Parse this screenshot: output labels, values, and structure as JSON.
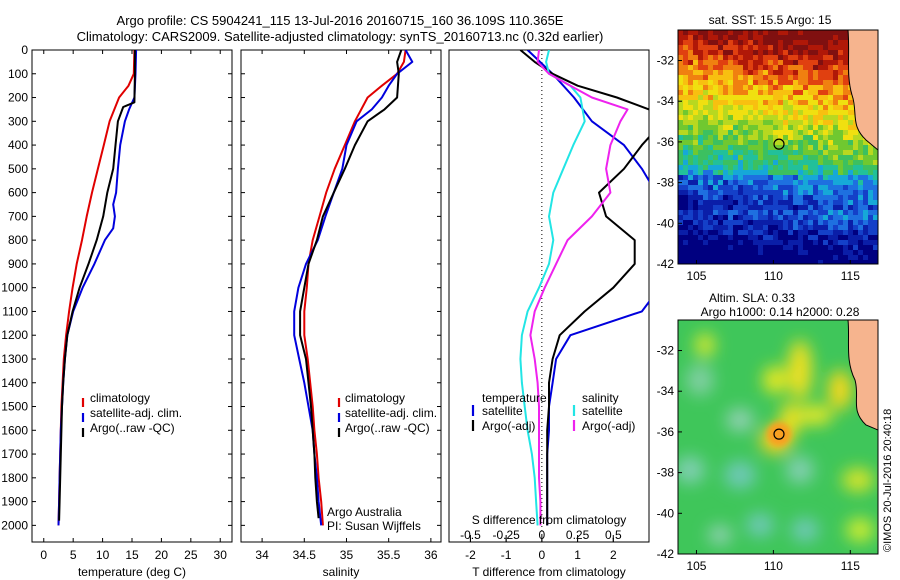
{
  "title": {
    "line1": "Argo profile: CS 5904241_115 13-Jul-2016 20160715_160 36.109S 110.365E",
    "line2": "Climatology: CARS2009. Satellite-adjusted climatology: synTS_20160713.nc (0.32d earlier)"
  },
  "side_text": "©IMOS 20-Jul-2016 20:40:18",
  "colors": {
    "climatology": "#e00000",
    "satellite": "#0000dd",
    "argo": "#000000",
    "sat_salinity": "#22e5e5",
    "argo_salinity": "#ee22ee"
  },
  "chart_data": [
    {
      "type": "line",
      "name": "temperature-panel",
      "xlabel": "temperature (deg C)",
      "ylabel": "",
      "xticks": [
        "0",
        "5",
        "10",
        "15",
        "20",
        "25",
        "30"
      ],
      "yticks": [
        "0",
        "100",
        "200",
        "300",
        "400",
        "500",
        "600",
        "700",
        "800",
        "900",
        "1000",
        "1100",
        "1200",
        "1300",
        "1400",
        "1500",
        "1600",
        "1700",
        "1800",
        "1900",
        "2000"
      ],
      "xlim": [
        -2,
        32
      ],
      "ylim": [
        2070,
        0
      ],
      "legend": {
        "placement": "lower-middle",
        "entries": [
          "climatology",
          "satellite-adj. clim.",
          "Argo(..raw -QC)"
        ]
      },
      "series": [
        {
          "name": "climatology",
          "color": "#e00000",
          "depth": [
            0,
            100,
            150,
            200,
            300,
            400,
            500,
            600,
            700,
            800,
            900,
            1000,
            1100,
            1200,
            1300,
            1400,
            1500,
            1600,
            1700,
            1800,
            1900,
            2000
          ],
          "values": [
            15.4,
            15.3,
            14.4,
            12.8,
            11.2,
            10.2,
            9.2,
            8.2,
            7.3,
            6.5,
            5.6,
            4.9,
            4.3,
            3.8,
            3.4,
            3.2,
            3.0,
            2.9,
            2.8,
            2.7,
            2.6,
            2.5
          ]
        },
        {
          "name": "satellite-adj. clim.",
          "color": "#0000dd",
          "depth": [
            0,
            100,
            200,
            250,
            300,
            400,
            500,
            600,
            650,
            700,
            750,
            800,
            900,
            1000,
            1100,
            1200,
            1300,
            1400,
            1500,
            1600,
            1700,
            1800,
            1900,
            2000
          ],
          "values": [
            15.7,
            15.6,
            15.4,
            14.5,
            13.8,
            13.0,
            12.6,
            12.3,
            11.8,
            12.1,
            11.8,
            10.4,
            8.6,
            6.6,
            5.0,
            4.0,
            3.6,
            3.3,
            3.1,
            2.9,
            2.8,
            2.7,
            2.6,
            2.5
          ]
        },
        {
          "name": "Argo(..raw -QC)",
          "color": "#000000",
          "depth": [
            0,
            100,
            220,
            240,
            300,
            400,
            500,
            600,
            700,
            800,
            900,
            1000,
            1100,
            1200,
            1300,
            1400,
            1500,
            1600,
            1700,
            1800,
            1900,
            1980
          ],
          "values": [
            15.5,
            15.5,
            15.4,
            13.5,
            12.6,
            12.2,
            11.8,
            10.8,
            10.1,
            9.0,
            7.6,
            6.1,
            4.9,
            4.0,
            3.6,
            3.3,
            3.1,
            3.0,
            2.9,
            2.8,
            2.7,
            2.6
          ]
        }
      ]
    },
    {
      "type": "line",
      "name": "salinity-panel",
      "xlabel": "salinity",
      "ylabel": "",
      "xticks": [
        "34",
        "34.5",
        "35",
        "35.5",
        "36"
      ],
      "xlim": [
        33.75,
        36.12
      ],
      "ylim": [
        2070,
        0
      ],
      "legend": {
        "placement": "lower-middle",
        "entries": [
          "climatology",
          "satellite-adj. clim.",
          "Argo(..raw -QC)"
        ]
      },
      "annotations": [
        "Argo Australia",
        "PI: Susan Wijffels"
      ],
      "series": [
        {
          "name": "climatology",
          "color": "#e00000",
          "depth": [
            0,
            50,
            100,
            150,
            200,
            300,
            400,
            500,
            600,
            700,
            800,
            900,
            1000,
            1100,
            1200,
            1300,
            1400,
            1500,
            1600,
            1700,
            1800,
            1900,
            2000
          ],
          "values": [
            35.7,
            35.68,
            35.6,
            35.42,
            35.25,
            35.1,
            34.98,
            34.86,
            34.76,
            34.68,
            34.6,
            34.55,
            34.53,
            34.5,
            34.5,
            34.54,
            34.57,
            34.6,
            34.62,
            34.65,
            34.67,
            34.7,
            34.72
          ]
        },
        {
          "name": "satellite-adj. clim.",
          "color": "#0000dd",
          "depth": [
            0,
            50,
            100,
            150,
            200,
            250,
            300,
            400,
            500,
            600,
            700,
            800,
            900,
            1000,
            1100,
            1200,
            1300,
            1400,
            1500,
            1600,
            1700,
            1800,
            1900,
            2000
          ],
          "values": [
            35.7,
            35.78,
            35.6,
            35.5,
            35.42,
            35.3,
            35.12,
            35.0,
            34.95,
            34.85,
            34.75,
            34.66,
            34.52,
            34.43,
            34.38,
            34.38,
            34.44,
            34.5,
            34.55,
            34.6,
            34.62,
            34.65,
            34.67,
            34.7
          ]
        },
        {
          "name": "Argo(..raw -QC)",
          "color": "#000000",
          "depth": [
            0,
            50,
            100,
            200,
            250,
            300,
            400,
            500,
            600,
            700,
            800,
            900,
            1000,
            1100,
            1200,
            1300,
            1400,
            1500,
            1600,
            1700,
            1800,
            1900,
            1970
          ],
          "values": [
            35.65,
            35.6,
            35.62,
            35.6,
            35.45,
            35.25,
            35.1,
            34.98,
            34.85,
            34.72,
            34.65,
            34.55,
            34.5,
            34.45,
            34.45,
            34.52,
            34.55,
            34.58,
            34.6,
            34.62,
            34.63,
            34.65,
            34.67
          ]
        }
      ]
    },
    {
      "type": "line",
      "name": "difference-panel",
      "xlabel": "T difference from climatology",
      "xlabel_top": "S difference from climatology",
      "xticks": [
        "-2",
        "-1",
        "0",
        "1",
        "2"
      ],
      "xticks_top": [
        "-0.5",
        "-0.25",
        "0",
        "0.25",
        "0.5"
      ],
      "xlim": [
        -2.6,
        3.0
      ],
      "ylim": [
        2070,
        0
      ],
      "legend": {
        "placement": "lower-middle",
        "entries": [
          "temperature",
          "satellite",
          "Argo(-adj)",
          "salinity",
          "satellite",
          "Argo(-adj)"
        ]
      },
      "series": [
        {
          "name": "temperature satellite",
          "color": "#0000dd",
          "depth": [
            0,
            100,
            200,
            300,
            400,
            500,
            600,
            700,
            800,
            900,
            1000,
            1100,
            1200,
            1300,
            1400,
            1500,
            1600,
            1700,
            1800,
            1900,
            2000
          ],
          "values": [
            -0.4,
            0.3,
            0.9,
            1.4,
            2.3,
            2.8,
            3.2,
            3.3,
            3.3,
            3.3,
            3.3,
            2.8,
            0.8,
            0.4,
            0.3,
            0.2,
            0.2,
            0.15,
            0.15,
            0.15,
            0.15
          ]
        },
        {
          "name": "temperature Argo(-adj)",
          "color": "#000000",
          "depth": [
            0,
            50,
            100,
            150,
            200,
            250,
            300,
            400,
            500,
            600,
            700,
            800,
            900,
            1000,
            1100,
            1200,
            1300,
            1400,
            1500,
            1600,
            1700,
            1800,
            1900,
            2000
          ],
          "values": [
            -0.6,
            -0.2,
            0.3,
            1.0,
            2.1,
            3.0,
            3.4,
            2.8,
            2.3,
            1.6,
            1.8,
            2.6,
            2.6,
            2.0,
            1.2,
            0.5,
            0.3,
            0.2,
            0.2,
            0.15,
            0.15,
            0.15,
            0.15,
            0.15
          ]
        },
        {
          "name": "salinity satellite",
          "color": "#22e5e5",
          "depth": [
            0,
            50,
            100,
            150,
            200,
            300,
            400,
            500,
            600,
            700,
            800,
            900,
            1000,
            1100,
            1200,
            1300,
            1400,
            1500,
            1600,
            1700,
            1800,
            1900,
            2000
          ],
          "values": [
            0.05,
            0.03,
            0.05,
            0.2,
            0.27,
            0.3,
            0.22,
            0.15,
            0.08,
            0.05,
            0.08,
            0.05,
            -0.02,
            -0.1,
            -0.14,
            -0.15,
            -0.14,
            -0.12,
            -0.1,
            -0.07,
            -0.05,
            -0.04,
            -0.03
          ]
        },
        {
          "name": "salinity Argo(-adj)",
          "color": "#ee22ee",
          "depth": [
            0,
            50,
            100,
            150,
            200,
            250,
            300,
            400,
            500,
            600,
            700,
            800,
            900,
            1000,
            1100,
            1200,
            1300,
            1400,
            1500,
            1600,
            1700,
            1800,
            1900,
            2000
          ],
          "values": [
            -0.02,
            -0.03,
            0.05,
            0.2,
            0.35,
            0.6,
            0.55,
            0.48,
            0.45,
            0.48,
            0.35,
            0.18,
            0.1,
            0.02,
            -0.05,
            -0.08,
            -0.05,
            -0.03,
            -0.02,
            -0.02,
            -0.02,
            -0.02,
            -0.01,
            -0.01
          ]
        }
      ]
    },
    {
      "type": "heatmap",
      "name": "sst-map",
      "title": "sat. SST: 15.5  Argo: 15",
      "xticks": [
        "105",
        "110",
        "115"
      ],
      "yticks": [
        "-32",
        "-34",
        "-36",
        "-38",
        "-40",
        "-42"
      ],
      "xlim": [
        103.8,
        116.8
      ],
      "ylim": [
        -42,
        -30.5
      ],
      "marker": {
        "lon": 110.365,
        "lat": -36.109
      }
    },
    {
      "type": "heatmap",
      "name": "sla-map",
      "title": "Altim. SLA: 0.33",
      "subtitle": "Argo h1000: 0.14 h2000: 0.28",
      "xticks": [
        "105",
        "110",
        "115"
      ],
      "yticks": [
        "-32",
        "-34",
        "-36",
        "-38",
        "-40",
        "-42"
      ],
      "xlim": [
        103.8,
        116.8
      ],
      "ylim": [
        -42,
        -30.5
      ],
      "marker": {
        "lon": 110.365,
        "lat": -36.109
      }
    }
  ]
}
